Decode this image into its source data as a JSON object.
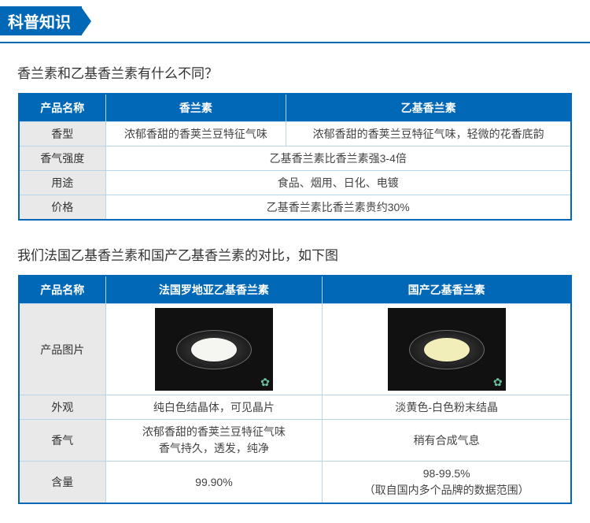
{
  "header": {
    "title": "科普知识"
  },
  "section1": {
    "title": "香兰素和乙基香兰素有什么不同？",
    "headers": [
      "产品名称",
      "香兰素",
      "乙基香兰素"
    ],
    "rows": [
      {
        "label": "香型",
        "c1": "浓郁香甜的香荚兰豆特征气味",
        "c2": "浓郁香甜的香荚兰豆特征气味，轻微的花香底韵"
      },
      {
        "label": "香气强度",
        "span": "乙基香兰素比香兰素强3-4倍"
      },
      {
        "label": "用途",
        "span": "食品、烟用、日化、电镀"
      },
      {
        "label": "价格",
        "span": "乙基香兰素比香兰素贵约30%"
      }
    ]
  },
  "section2": {
    "title": "我们法国乙基香兰素和国产乙基香兰素的对比，如下图",
    "headers": [
      "产品名称",
      "法国罗地亚乙基香兰素",
      "国产乙基香兰素"
    ],
    "imageRowLabel": "产品图片",
    "rows": [
      {
        "label": "外观",
        "c1": "纯白色结晶体，可见晶片",
        "c2": "淡黄色-白色粉末结晶"
      },
      {
        "label": "香气",
        "c1": "浓郁香甜的香荚兰豆特征气味\n香气持久，透发，纯净",
        "c2": "稍有合成气息"
      },
      {
        "label": "含量",
        "c1": "99.90%",
        "c2": "98-99.5%\n（取自国内多个品牌的数据范围）"
      }
    ]
  },
  "colors": {
    "brand": "#0068b7",
    "rowlabel_bg": "#e9e9e9",
    "border_light": "#b6d5e9"
  }
}
